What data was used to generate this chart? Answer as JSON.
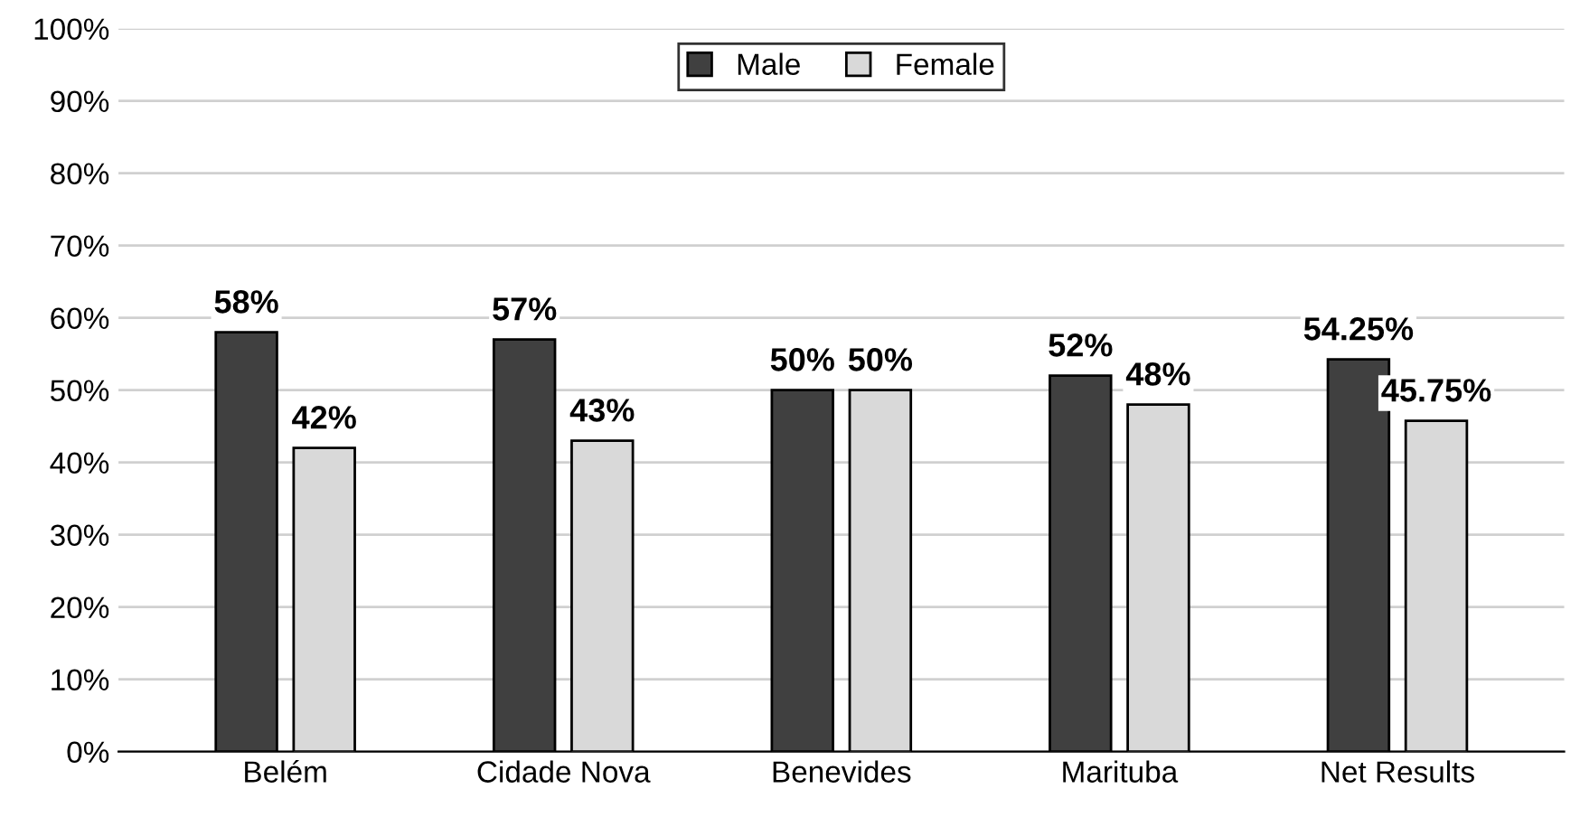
{
  "chart_data": {
    "type": "bar",
    "categories": [
      "Belém",
      "Cidade Nova",
      "Benevides",
      "Marituba",
      "Net Results"
    ],
    "series": [
      {
        "name": "Male",
        "color": "#404040",
        "values": [
          58,
          57,
          50,
          52,
          54.25
        ],
        "value_labels": [
          "58%",
          "57%",
          "50%",
          "52%",
          "54.25%"
        ]
      },
      {
        "name": "Female",
        "color": "#d9d9d9",
        "values": [
          42,
          43,
          50,
          48,
          45.75
        ],
        "value_labels": [
          "42%",
          "43%",
          "50%",
          "48%",
          "45.75%"
        ]
      }
    ],
    "ylim": [
      0,
      100
    ],
    "yticks": [
      {
        "value": 0,
        "label": "0%"
      },
      {
        "value": 10,
        "label": "10%"
      },
      {
        "value": 20,
        "label": "20%"
      },
      {
        "value": 30,
        "label": "30%"
      },
      {
        "value": 40,
        "label": "40%"
      },
      {
        "value": 50,
        "label": "50%"
      },
      {
        "value": 60,
        "label": "60%"
      },
      {
        "value": 70,
        "label": "70%"
      },
      {
        "value": 80,
        "label": "80%"
      },
      {
        "value": 90,
        "label": "90%"
      },
      {
        "value": 100,
        "label": "100%"
      }
    ],
    "grid": "y",
    "legend": "top"
  }
}
